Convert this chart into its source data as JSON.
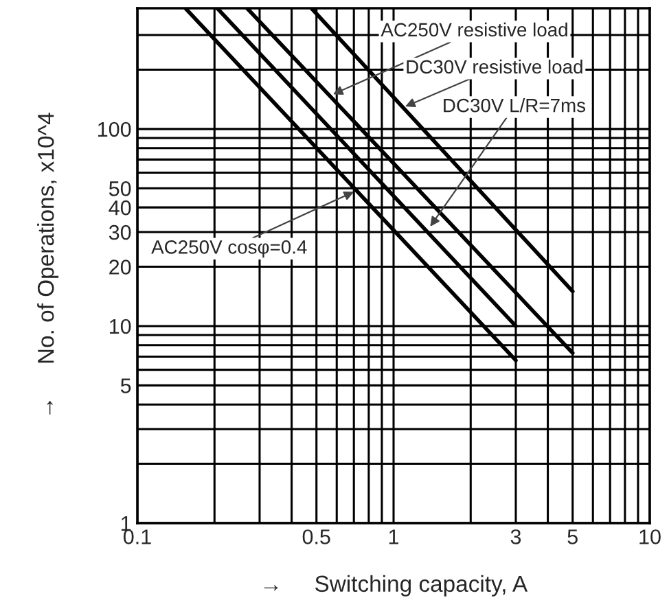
{
  "chart_data": {
    "type": "line",
    "xlabel": "→     Switching capacity, A",
    "ylabel": "→     No. of Operations, x10^4",
    "log": "xy",
    "xlim": [
      0.1,
      10
    ],
    "ylim": [
      1,
      410
    ],
    "xticks": [
      0.1,
      {
        "value": 0.2,
        "label": null
      },
      {
        "value": 0.3,
        "label": null
      },
      {
        "value": 0.4,
        "label": null
      },
      0.5,
      {
        "value": 0.6,
        "label": null
      },
      {
        "value": 0.7,
        "label": null
      },
      {
        "value": 0.8,
        "label": null
      },
      {
        "value": 0.9,
        "label": null
      },
      1,
      {
        "value": 2,
        "label": null
      },
      3,
      {
        "value": 4,
        "label": null
      },
      5,
      {
        "value": 6,
        "label": null
      },
      {
        "value": 7,
        "label": null
      },
      {
        "value": 8,
        "label": null
      },
      {
        "value": 9,
        "label": null
      },
      10
    ],
    "yticks": [
      1,
      {
        "value": 2,
        "label": null
      },
      {
        "value": 3,
        "label": null
      },
      {
        "value": 4,
        "label": null
      },
      5,
      {
        "value": 6,
        "label": null
      },
      {
        "value": 7,
        "label": null
      },
      {
        "value": 8,
        "label": null
      },
      {
        "value": 9,
        "label": null
      },
      10,
      20,
      30,
      40,
      50,
      {
        "value": 60,
        "label": null
      },
      {
        "value": 70,
        "label": null
      },
      {
        "value": 80,
        "label": null
      },
      {
        "value": 90,
        "label": null
      },
      100,
      {
        "value": 200,
        "label": null
      },
      {
        "value": 300,
        "label": null
      }
    ],
    "annotations": [
      {
        "text": "AC250V cosφ=0.4",
        "x": 0.7,
        "y": 48
      },
      {
        "text": "DC30V L/R=7ms",
        "x": 1.39,
        "y": 32
      },
      {
        "text": "AC250V resistive load",
        "x": 0.58,
        "y": 150
      },
      {
        "text": "DC30V resistive load",
        "x": 1.11,
        "y": 130
      }
    ],
    "grid": true,
    "legend": false,
    "marker": "none",
    "line_style": "solid",
    "series": [
      {
        "color": "#000000",
        "x": [
          0.154,
          3
        ],
        "values": [
          410,
          6.7
        ]
      },
      {
        "color": "#000000",
        "x": [
          0.205,
          3
        ],
        "values": [
          410,
          10
        ]
      },
      {
        "color": "#000000",
        "x": [
          0.268,
          5
        ],
        "values": [
          410,
          7.3
        ]
      },
      {
        "color": "#000000",
        "x": [
          0.478,
          5
        ],
        "values": [
          410,
          15
        ]
      }
    ]
  }
}
